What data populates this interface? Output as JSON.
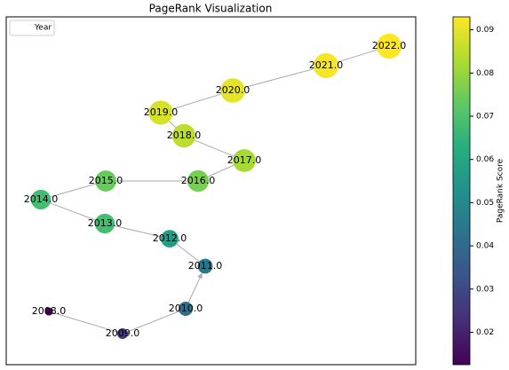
{
  "chart_data": {
    "type": "network",
    "title": "PageRank Visualization",
    "legend": [
      "Year"
    ],
    "legend_position": "upper left",
    "nodes": [
      {
        "label": "2008.0",
        "value": 0.013
      },
      {
        "label": "2009.0",
        "value": 0.025
      },
      {
        "label": "2010.0",
        "value": 0.042
      },
      {
        "label": "2011.0",
        "value": 0.045
      },
      {
        "label": "2012.0",
        "value": 0.057
      },
      {
        "label": "2013.0",
        "value": 0.068
      },
      {
        "label": "2014.0",
        "value": 0.068
      },
      {
        "label": "2015.0",
        "value": 0.074
      },
      {
        "label": "2016.0",
        "value": 0.076
      },
      {
        "label": "2017.0",
        "value": 0.082
      },
      {
        "label": "2018.0",
        "value": 0.085
      },
      {
        "label": "2019.0",
        "value": 0.088
      },
      {
        "label": "2020.0",
        "value": 0.09
      },
      {
        "label": "2021.0",
        "value": 0.092
      },
      {
        "label": "2022.0",
        "value": 0.093
      }
    ],
    "colorbar_label": "PageRank Score",
    "clim": [
      0.0125,
      0.093
    ],
    "cticks": [
      0.02,
      0.03,
      0.04,
      0.05,
      0.06,
      0.07,
      0.08,
      0.09
    ],
    "colormap": "viridis"
  }
}
